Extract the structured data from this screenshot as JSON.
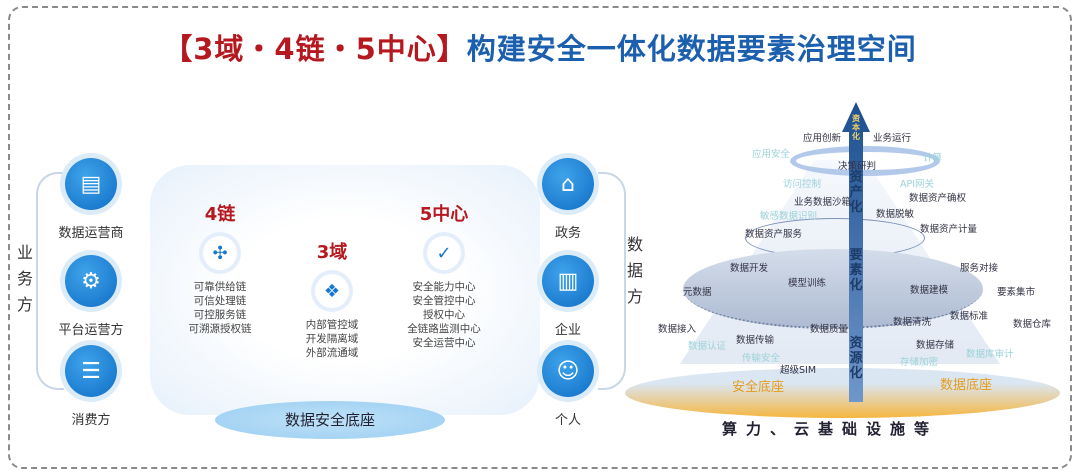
{
  "title": {
    "part1": "【3域・4链・5中心】",
    "part2": "构建安全一体化数据要素治理空间"
  },
  "left": {
    "side_label": "业务方",
    "items": [
      {
        "label": "数据运营商",
        "icon": "data-operator-icon"
      },
      {
        "label": "平台运营方",
        "icon": "platform-icon"
      },
      {
        "label": "消费方",
        "icon": "consumer-icon"
      }
    ]
  },
  "right": {
    "side_label": "数据方",
    "items": [
      {
        "label": "政务",
        "icon": "government-icon"
      },
      {
        "label": "企业",
        "icon": "enterprise-icon"
      },
      {
        "label": "个人",
        "icon": "person-icon"
      }
    ]
  },
  "chains": {
    "heading": "4链",
    "items": [
      "可靠供给链",
      "可信处理链",
      "可控服务链",
      "可溯源授权链"
    ]
  },
  "domains": {
    "heading": "3域",
    "items": [
      "内部管控域",
      "开发隔离域",
      "外部流通域"
    ]
  },
  "centers": {
    "heading": "5中心",
    "items": [
      "安全能力中心",
      "安全管控中心",
      "授权中心",
      "全链路监测中心",
      "安全运营中心"
    ]
  },
  "base_label": "数据安全底座",
  "pyramid": {
    "labels": [
      "应用创新",
      "业务运行",
      "决策研判",
      "业务数据沙箱",
      "数据资产确权",
      "数据脱敏",
      "数据资产服务",
      "数据资产计量",
      "数据开发",
      "服务对接",
      "模型训练",
      "元数据",
      "数据建模",
      "要素集市",
      "数据接入",
      "数据质量",
      "数据清洗",
      "数据标准",
      "数据仓库",
      "数据传输",
      "数据存储",
      "超级SIM"
    ],
    "faint_labels": [
      "应用安全",
      "计算",
      "访问控制",
      "API网关",
      "敏感数据识别",
      "数据认证",
      "传输安全",
      "存储加密",
      "数据库审计"
    ],
    "stages": [
      "资本化",
      "资产化",
      "要素化",
      "资源化"
    ],
    "base_left": "安全底座",
    "base_right": "数据底座",
    "infra": "算力、云基础设施等"
  }
}
